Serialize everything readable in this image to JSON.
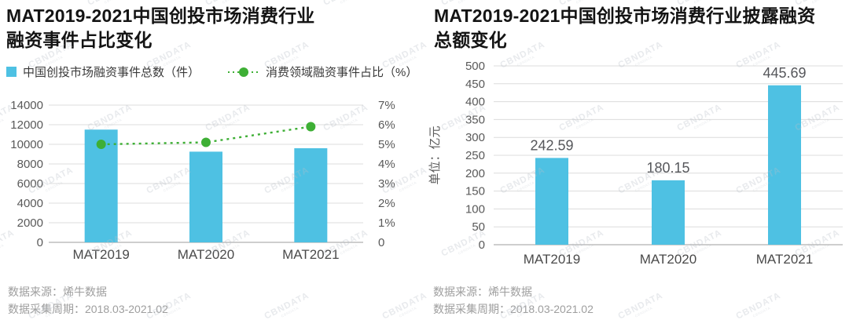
{
  "watermark": {
    "text": "CBNDATA"
  },
  "footer": {
    "source": "数据来源：烯牛数据",
    "period": "数据采集周期：2018.03-2021.02"
  },
  "colors": {
    "bar": "#4EC1E3",
    "line": "#3EAF35",
    "grid": "#dcdcdc",
    "axis_zero": "#9c9c9c",
    "tick_text": "#595959",
    "category_text": "#4a4a4a",
    "value_label": "#55565a",
    "ylabel_text": "#595959"
  },
  "chart_data": [
    {
      "type": "combo-bar-line",
      "title": "MAT2019-2021中国创投市场消费行业融资事件占比变化",
      "title_lines": [
        "MAT2019-2021中国创投市场消费行业",
        "融资事件占比变化"
      ],
      "categories": [
        "MAT2019",
        "MAT2020",
        "MAT2021"
      ],
      "series": [
        {
          "name": "中国创投市场融资事件总数（件）",
          "type": "bar",
          "axis": "left",
          "color": "#4EC1E3",
          "values": [
            11500,
            9250,
            9600
          ]
        },
        {
          "name": "消费领域融资事件占比（%）",
          "type": "line",
          "axis": "right",
          "color": "#3EAF35",
          "values": [
            5.0,
            5.1,
            5.9
          ]
        }
      ],
      "left_axis": {
        "min": 0,
        "max": 14000,
        "step": 2000,
        "ticks": [
          "0",
          "2000",
          "4000",
          "6000",
          "8000",
          "10000",
          "12000",
          "14000"
        ]
      },
      "right_axis": {
        "min": 0,
        "max": 7,
        "step": 1,
        "suffix": "%",
        "ticks": [
          "0",
          "1%",
          "2%",
          "3%",
          "4%",
          "5%",
          "6%",
          "7%"
        ]
      },
      "legend_position": "top",
      "grid": true
    },
    {
      "type": "bar",
      "title": "MAT2019-2021中国创投市场消费行业披露融资总额变化",
      "title_lines": [
        "MAT2019-2021中国创投市场消费行业披露融资",
        "总额变化"
      ],
      "categories": [
        "MAT2019",
        "MAT2020",
        "MAT2021"
      ],
      "values": [
        242.59,
        180.15,
        445.69
      ],
      "value_labels": [
        "242.59",
        "180.15",
        "445.69"
      ],
      "ylabel": "单位：亿元",
      "yaxis": {
        "min": 0,
        "max": 500,
        "step": 50,
        "ticks": [
          "0",
          "50",
          "100",
          "150",
          "200",
          "250",
          "300",
          "350",
          "400",
          "450",
          "500"
        ]
      },
      "grid": true
    }
  ]
}
